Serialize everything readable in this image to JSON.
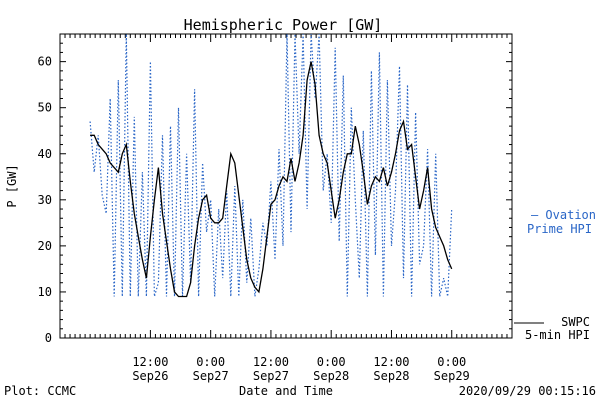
{
  "chart_data": {
    "type": "line",
    "title": "Hemispheric Power [GW]",
    "xlabel": "Date and Time",
    "ylabel": "P [GW]",
    "ylim": [
      0,
      66
    ],
    "xlim_hours": [
      -18,
      72
    ],
    "yticks": [
      0,
      10,
      20,
      30,
      40,
      50,
      60
    ],
    "xticks": [
      {
        "hour": 0,
        "time": "12:00",
        "date": "Sep26"
      },
      {
        "hour": 12,
        "time": "0:00",
        "date": "Sep27"
      },
      {
        "hour": 24,
        "time": "12:00",
        "date": "Sep27"
      },
      {
        "hour": 36,
        "time": "0:00",
        "date": "Sep28"
      },
      {
        "hour": 48,
        "time": "12:00",
        "date": "Sep28"
      },
      {
        "hour": 60,
        "time": "0:00",
        "date": "Sep29"
      }
    ],
    "series": [
      {
        "name_lines": [
          "SWPC",
          "5-min HPI"
        ],
        "color": "#000000",
        "style": "solid",
        "x": [
          -12.0,
          -11.2,
          -10.4,
          -9.6,
          -8.8,
          -8.0,
          -7.2,
          -6.4,
          -5.6,
          -4.8,
          -4.0,
          -3.2,
          -2.4,
          -1.6,
          -0.8,
          0.0,
          0.8,
          1.6,
          2.4,
          3.2,
          4.0,
          4.8,
          5.6,
          6.4,
          7.2,
          8.0,
          8.8,
          9.6,
          10.4,
          11.2,
          12.0,
          12.8,
          13.6,
          14.4,
          15.2,
          16.0,
          16.8,
          17.6,
          18.4,
          19.2,
          20.0,
          20.8,
          21.6,
          22.4,
          23.2,
          24.0,
          24.8,
          25.6,
          26.4,
          27.2,
          28.0,
          28.8,
          29.6,
          30.4,
          31.2,
          32.0,
          32.8,
          33.6,
          34.4,
          35.2,
          36.0,
          36.8,
          37.6,
          38.4,
          39.2,
          40.0,
          40.8,
          41.6,
          42.4,
          43.2,
          44.0,
          44.8,
          45.6,
          46.4,
          47.2,
          48.0,
          48.8,
          49.6,
          50.4,
          51.2,
          52.0,
          52.8,
          53.6,
          54.4,
          55.2,
          56.0,
          56.8,
          57.6,
          58.4,
          59.2,
          60.0
        ],
        "values": [
          44,
          44,
          42,
          41,
          40,
          38,
          37,
          36,
          40,
          42,
          34,
          27,
          22,
          17,
          13,
          22,
          30,
          37,
          27,
          21,
          15,
          10,
          9,
          9,
          9,
          12,
          20,
          26,
          30,
          31,
          26,
          25,
          25,
          26,
          33,
          40,
          38,
          31,
          24,
          17,
          13,
          11,
          10,
          15,
          22,
          29,
          30,
          33,
          35,
          34,
          39,
          34,
          38,
          44,
          56,
          60,
          55,
          44,
          40,
          38,
          32,
          26,
          30,
          36,
          40,
          40,
          46,
          42,
          36,
          29,
          33,
          35,
          34,
          37,
          33,
          36,
          40,
          45,
          47,
          41,
          42,
          35,
          28,
          32,
          37,
          28,
          24,
          22,
          20,
          17,
          15
        ]
      },
      {
        "name_lines": [
          "— Ovation",
          "Prime HPI"
        ],
        "color": "#2a66c7",
        "style": "dotted",
        "x": [
          -12.0,
          -11.2,
          -10.4,
          -9.6,
          -8.8,
          -8.0,
          -7.2,
          -6.4,
          -5.6,
          -4.8,
          -4.0,
          -3.2,
          -2.4,
          -1.6,
          -0.8,
          0.0,
          0.8,
          1.6,
          2.4,
          3.2,
          4.0,
          4.8,
          5.6,
          6.4,
          7.2,
          8.0,
          8.8,
          9.6,
          10.4,
          11.2,
          12.0,
          12.8,
          13.6,
          14.4,
          15.2,
          16.0,
          16.8,
          17.6,
          18.4,
          19.2,
          20.0,
          20.8,
          21.6,
          22.4,
          23.2,
          24.0,
          24.8,
          25.6,
          26.4,
          27.2,
          28.0,
          28.8,
          29.6,
          30.4,
          31.2,
          32.0,
          32.8,
          33.6,
          34.4,
          35.2,
          36.0,
          36.8,
          37.6,
          38.4,
          39.2,
          40.0,
          40.8,
          41.6,
          42.4,
          43.2,
          44.0,
          44.8,
          45.6,
          46.4,
          47.2,
          48.0,
          48.8,
          49.6,
          50.4,
          51.2,
          52.0,
          52.8,
          53.6,
          54.4,
          55.2,
          56.0,
          56.8,
          57.6,
          58.4,
          59.2,
          60.0
        ],
        "values": [
          47,
          36,
          44,
          31,
          27,
          52,
          9,
          56,
          9,
          66,
          9,
          48,
          9,
          36,
          9,
          60,
          9,
          12,
          44,
          9,
          46,
          9,
          50,
          9,
          40,
          12,
          54,
          9,
          38,
          23,
          30,
          9,
          28,
          13,
          32,
          9,
          33,
          9,
          30,
          12,
          26,
          9,
          15,
          25,
          20,
          34,
          17,
          41,
          20,
          66,
          23,
          66,
          40,
          66,
          28,
          66,
          52,
          66,
          32,
          40,
          25,
          63,
          21,
          57,
          9,
          50,
          30,
          13,
          45,
          9,
          58,
          18,
          62,
          9,
          56,
          20,
          32,
          59,
          13,
          55,
          9,
          49,
          16,
          20,
          41,
          9,
          40,
          9,
          13,
          9,
          28
        ]
      }
    ]
  },
  "footer": {
    "left": "Plot: CCMC",
    "timestamp": "2020/09/29 00:15:16"
  }
}
